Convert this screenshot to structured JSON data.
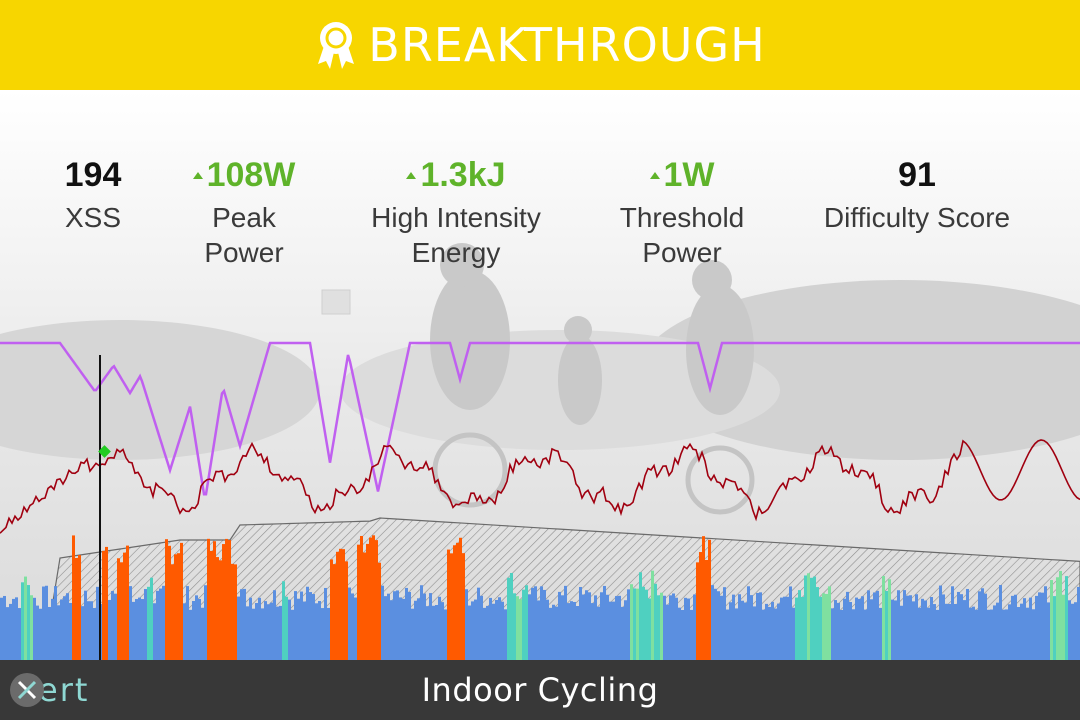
{
  "banner": {
    "title": "BREAKTHROUGH",
    "icon": "award-ribbon-icon",
    "background": "#f7d600"
  },
  "stats": [
    {
      "value": "194",
      "label_line1": "XSS",
      "label_line2": "",
      "trend": "none",
      "color": "#111111"
    },
    {
      "value": "108W",
      "label_line1": "Peak",
      "label_line2": "Power",
      "trend": "up",
      "color": "#5fb32a"
    },
    {
      "value": "1.3kJ",
      "label_line1": "High Intensity",
      "label_line2": "Energy",
      "trend": "up",
      "color": "#5fb32a"
    },
    {
      "value": "1W",
      "label_line1": "Threshold",
      "label_line2": "Power",
      "trend": "up",
      "color": "#5fb32a"
    },
    {
      "value": "91",
      "label_line1": "Difficulty Score",
      "label_line2": "",
      "trend": "none",
      "color": "#111111"
    }
  ],
  "footer": {
    "title": "Indoor Cycling",
    "logo_text": "ert",
    "logo_mark": "x-logo-icon",
    "background": "#383838"
  },
  "chart_data": {
    "type": "area",
    "series": [],
    "colors": {
      "power_blue": "#5b8fe0",
      "power_orange": "#ff5a00",
      "heart_rate": "#a00010",
      "map": "#c060f0",
      "threshold_hatch": "#9a9a9a",
      "marker": "#22cc22"
    }
  }
}
